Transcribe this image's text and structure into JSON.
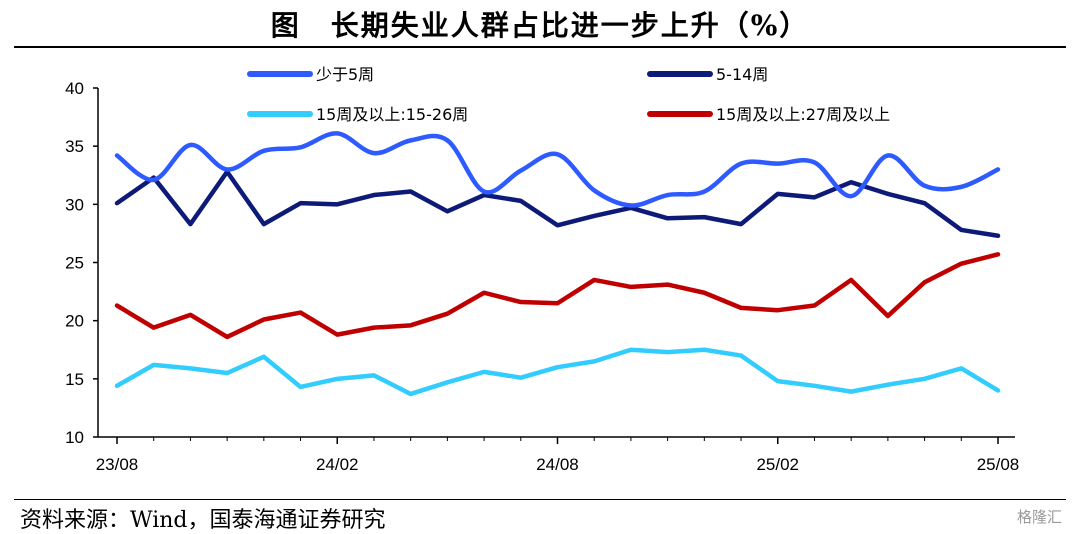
{
  "page": {
    "title": "图　长期失业人群占比进一步上升（%）",
    "source": "资料来源：Wind，国泰海通证券研究",
    "watermark": "格隆汇"
  },
  "chart_data": {
    "type": "line",
    "ylim": [
      10,
      40
    ],
    "yticks": [
      10,
      15,
      20,
      25,
      30,
      35,
      40
    ],
    "xtick_labels": [
      {
        "index": 0,
        "label": "23/08"
      },
      {
        "index": 6,
        "label": "24/02"
      },
      {
        "index": 12,
        "label": "24/08"
      },
      {
        "index": 18,
        "label": "25/02"
      },
      {
        "index": 24,
        "label": "25/08"
      }
    ],
    "x": [
      "23/08",
      "23/09",
      "23/10",
      "23/11",
      "23/12",
      "24/01",
      "24/02",
      "24/03",
      "24/04",
      "24/05",
      "24/06",
      "24/07",
      "24/08",
      "24/09",
      "24/10",
      "24/11",
      "24/12",
      "25/01",
      "25/02",
      "25/03",
      "25/04",
      "25/05",
      "25/06",
      "25/07",
      "25/08"
    ],
    "series": [
      {
        "name": "少于5周",
        "color": "#2e5bff",
        "smooth": true,
        "values": [
          34.2,
          32.1,
          35.1,
          33.0,
          34.6,
          34.9,
          36.1,
          34.4,
          35.5,
          35.5,
          31.1,
          32.9,
          34.3,
          31.2,
          29.9,
          30.8,
          31.1,
          33.5,
          33.5,
          33.6,
          30.7,
          34.2,
          31.6,
          31.5,
          33.0
        ]
      },
      {
        "name": "5-14周",
        "color": "#0d1a78",
        "smooth": false,
        "values": [
          30.1,
          32.3,
          28.3,
          32.8,
          28.3,
          30.1,
          30.0,
          30.8,
          31.1,
          29.4,
          30.8,
          30.3,
          28.2,
          29.0,
          29.7,
          28.8,
          28.9,
          28.3,
          30.9,
          30.6,
          31.9,
          30.9,
          30.1,
          27.8,
          27.3
        ]
      },
      {
        "name": "15周及以上:15-26周",
        "color": "#33ccff",
        "smooth": false,
        "values": [
          14.4,
          16.2,
          15.9,
          15.5,
          16.9,
          14.3,
          15.0,
          15.3,
          13.7,
          14.7,
          15.6,
          15.1,
          16.0,
          16.5,
          17.5,
          17.3,
          17.5,
          17.0,
          14.8,
          14.4,
          13.9,
          14.5,
          15.0,
          15.9,
          14.0
        ]
      },
      {
        "name": "15周及以上:27周及以上",
        "color": "#c00000",
        "smooth": false,
        "values": [
          21.3,
          19.4,
          20.5,
          18.6,
          20.1,
          20.7,
          18.8,
          19.4,
          19.6,
          20.6,
          22.4,
          21.6,
          21.5,
          23.5,
          22.9,
          23.1,
          22.4,
          21.1,
          20.9,
          21.3,
          23.5,
          20.4,
          23.3,
          24.9,
          25.7
        ]
      }
    ],
    "legend": {
      "placement": "top",
      "columns": 2
    },
    "grid": false
  }
}
